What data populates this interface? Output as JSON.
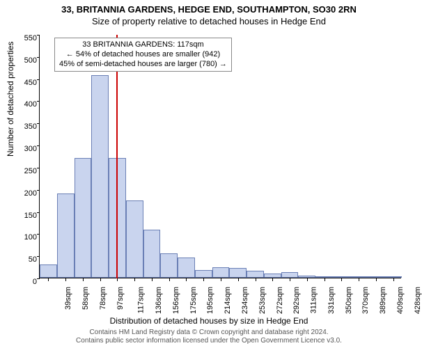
{
  "titles": {
    "main": "33, BRITANNIA GARDENS, HEDGE END, SOUTHAMPTON, SO30 2RN",
    "sub": "Size of property relative to detached houses in Hedge End"
  },
  "chart": {
    "type": "histogram",
    "ylim": [
      0,
      550
    ],
    "ytick_step": 50,
    "xlabel": "Distribution of detached houses by size in Hedge End",
    "ylabel": "Number of detached properties",
    "bar_fill": "#c9d4ee",
    "bar_border": "#6a7fb5",
    "ref_line_color": "#cc0000",
    "ref_line_x_index": 4,
    "background": "#ffffff",
    "categories": [
      "39sqm",
      "58sqm",
      "78sqm",
      "97sqm",
      "117sqm",
      "136sqm",
      "156sqm",
      "175sqm",
      "195sqm",
      "214sqm",
      "234sqm",
      "253sqm",
      "272sqm",
      "292sqm",
      "311sqm",
      "331sqm",
      "350sqm",
      "370sqm",
      "389sqm",
      "409sqm",
      "428sqm"
    ],
    "values": [
      30,
      190,
      270,
      458,
      270,
      175,
      108,
      55,
      45,
      18,
      23,
      22,
      15,
      10,
      12,
      5,
      3,
      2,
      2,
      2,
      2
    ]
  },
  "infobox": {
    "line1": "33 BRITANNIA GARDENS: 117sqm",
    "line2": "← 54% of detached houses are smaller (942)",
    "line3": "45% of semi-detached houses are larger (780) →"
  },
  "footer": {
    "line1": "Contains HM Land Registry data © Crown copyright and database right 2024.",
    "line2": "Contains public sector information licensed under the Open Government Licence v3.0."
  }
}
